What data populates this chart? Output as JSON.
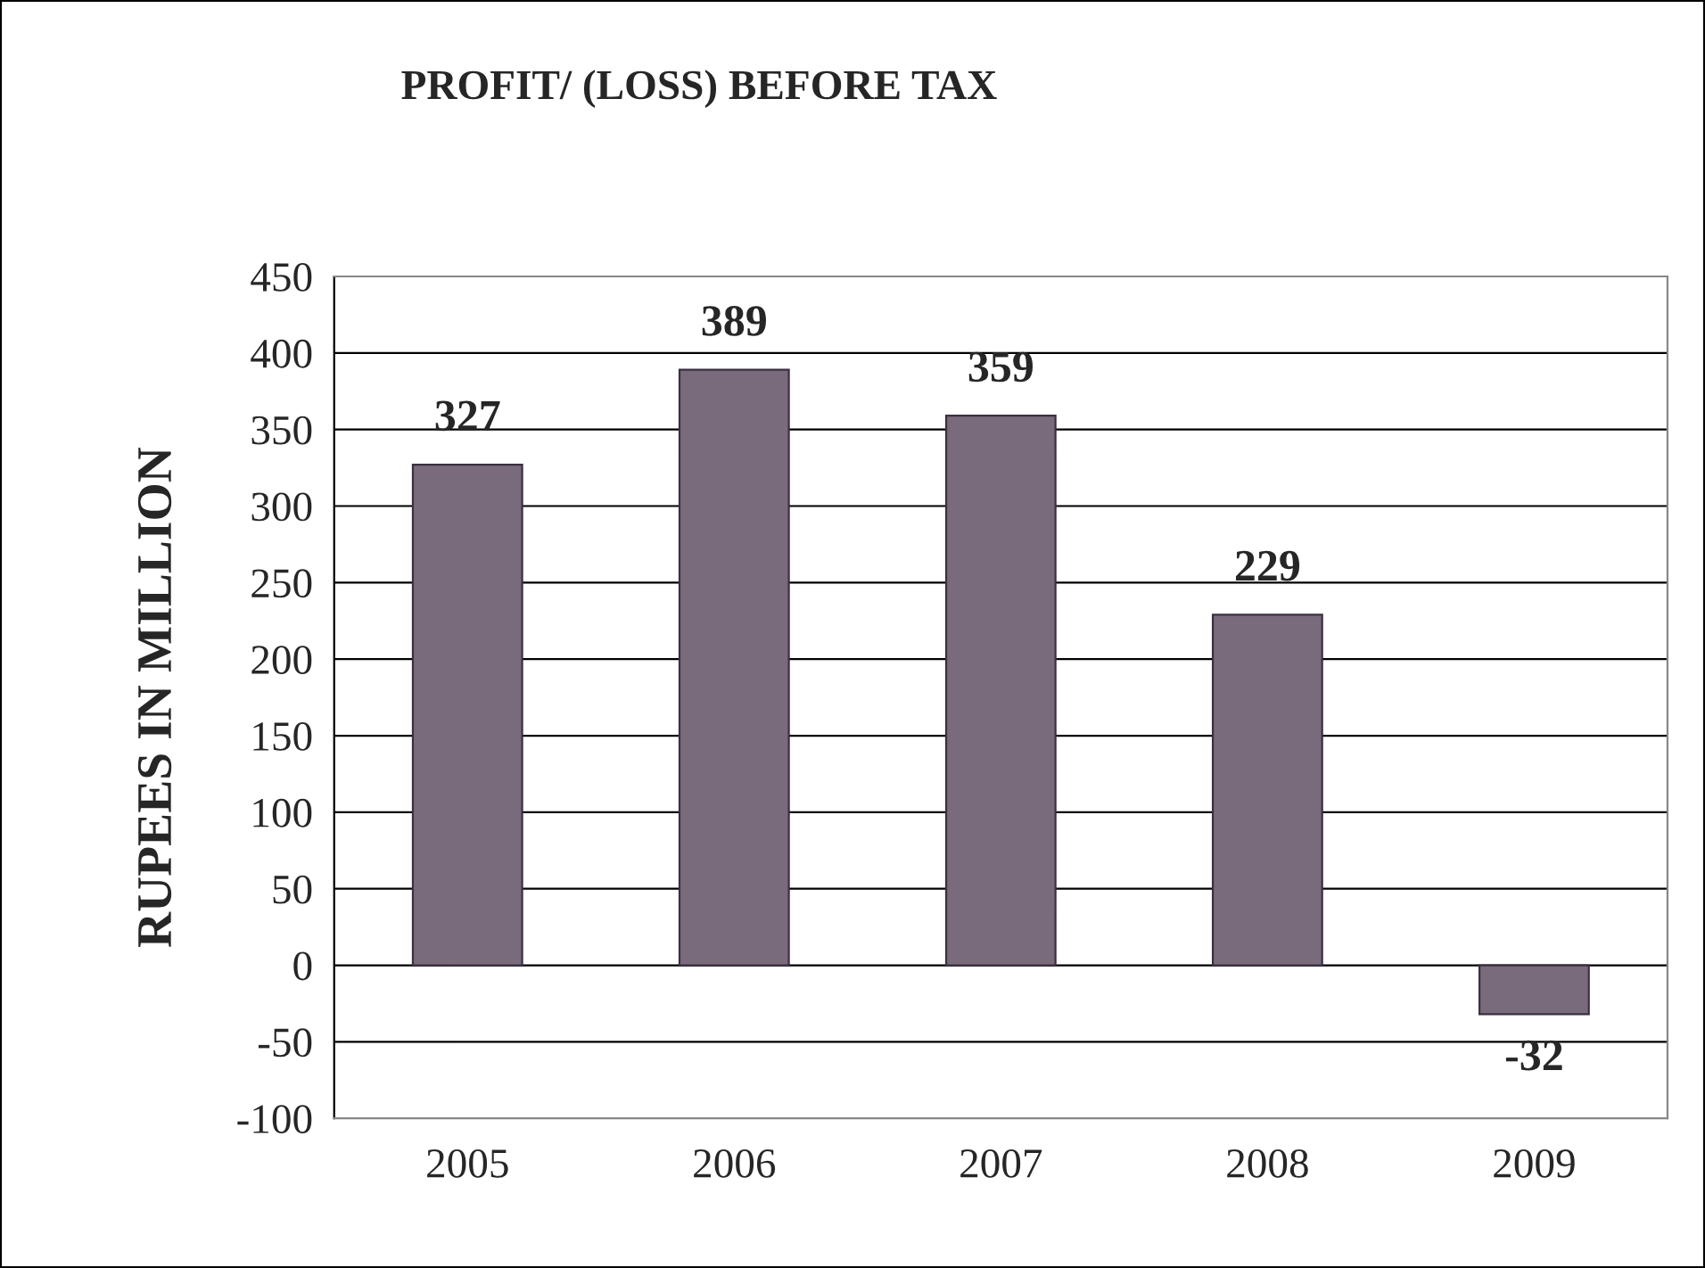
{
  "chart_data": {
    "type": "bar",
    "title": "PROFIT/ (LOSS) BEFORE TAX",
    "ylabel": "RUPEES IN MILLION",
    "categories": [
      "2005",
      "2006",
      "2007",
      "2008",
      "2009"
    ],
    "values": [
      327,
      389,
      359,
      229,
      -32
    ],
    "color": "#7a6b7c",
    "ylim": [
      -100,
      450
    ],
    "yticks": [
      -100,
      -50,
      0,
      50,
      100,
      150,
      200,
      250,
      300,
      350,
      400,
      450
    ],
    "grid": "y",
    "data_labels": true,
    "legend": false
  }
}
